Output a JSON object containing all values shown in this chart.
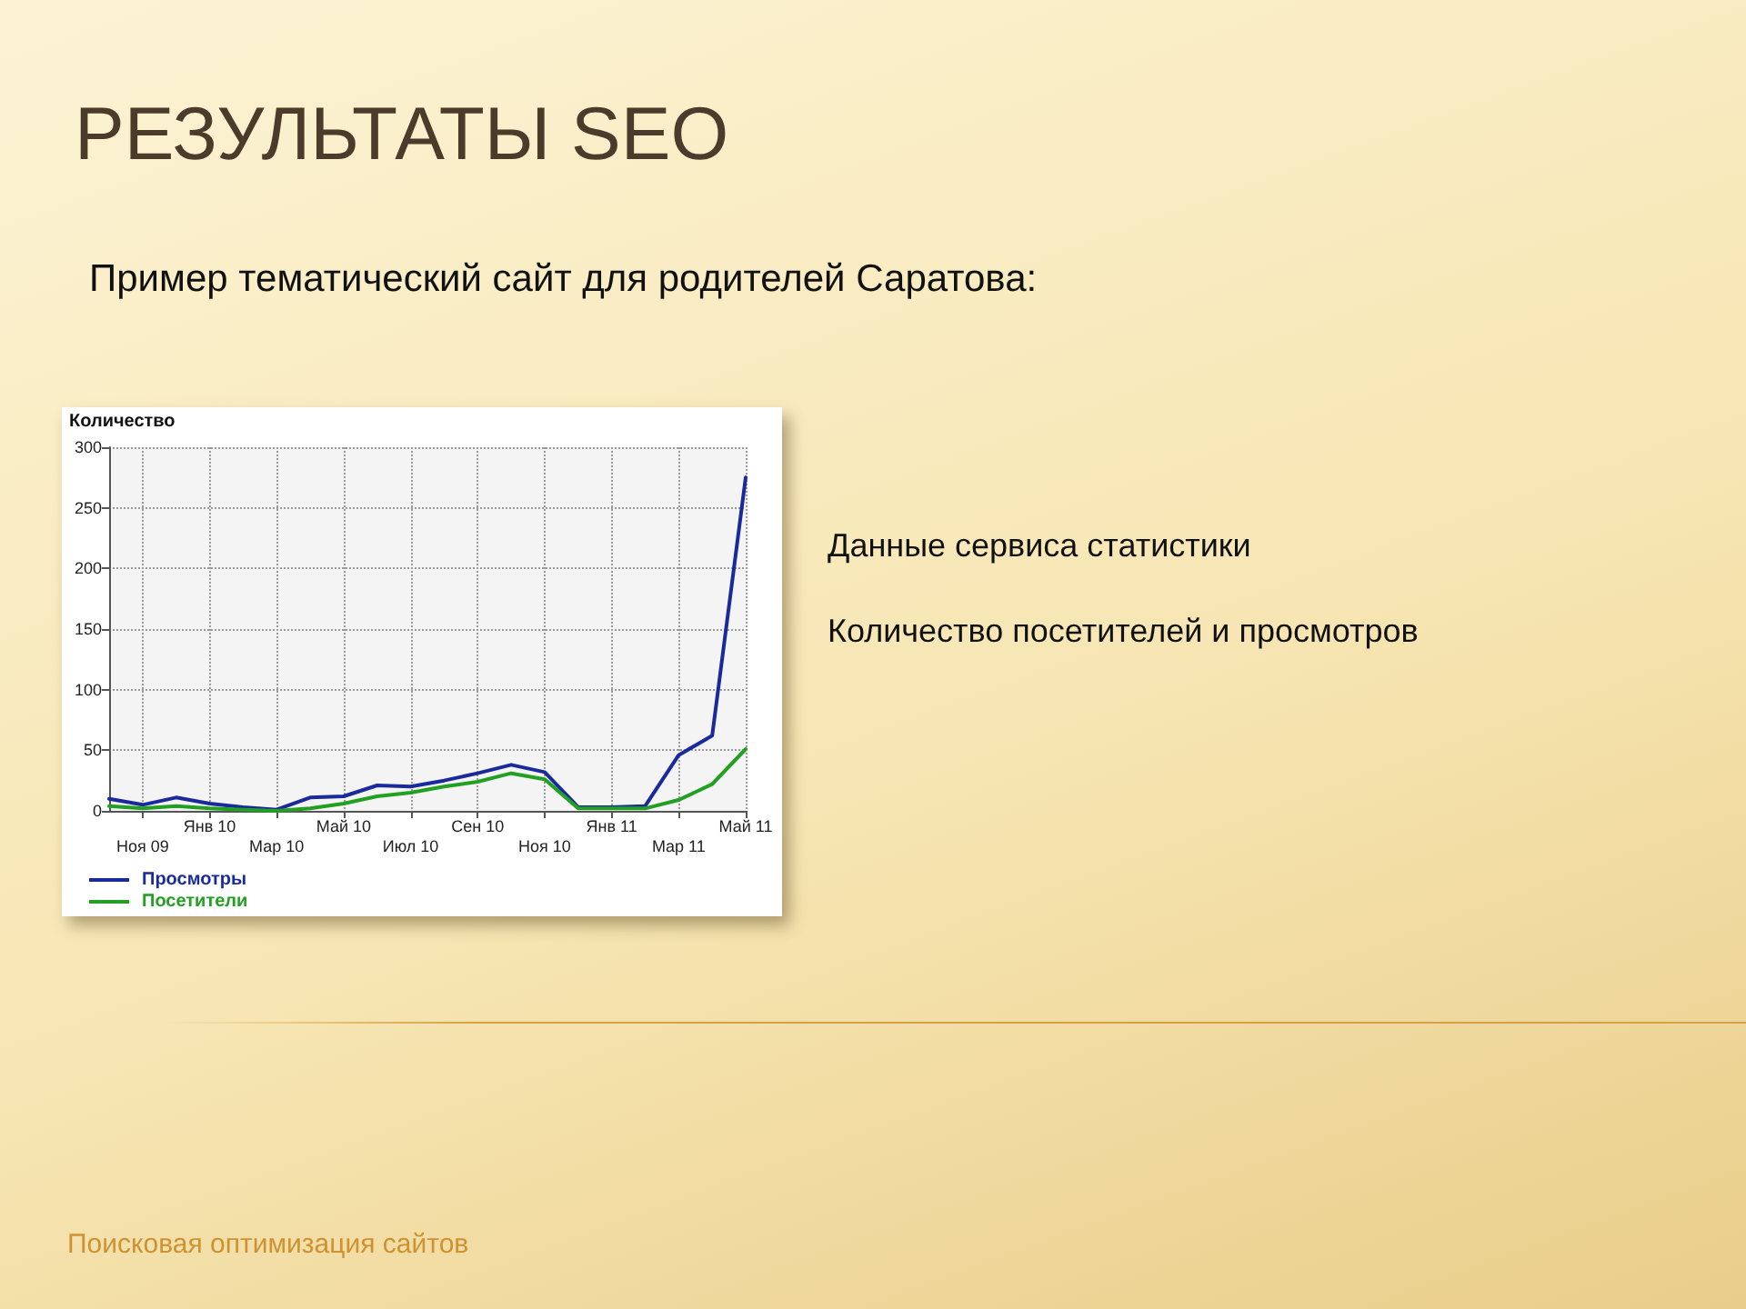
{
  "chart_data": {
    "type": "line",
    "title": "РЕЗУЛЬТАТЫ SEO",
    "subtitle": "Пример тематический сайт для родителей Саратова:",
    "ylabel": "Количество",
    "annotations": [
      "Данные сервиса статистики",
      "Количество посетителей и просмотров",
      "Поисковая оптимизация сайтов"
    ],
    "categories": [
      null,
      "Ноя 09",
      null,
      "Янв 10",
      null,
      "Мар 10",
      null,
      "Май 10",
      null,
      "Июл 10",
      null,
      "Сен 10",
      null,
      "Ноя 10",
      null,
      "Янв 11",
      null,
      "Мар 11",
      null,
      "Май 11"
    ],
    "series": [
      {
        "name": "Просмотры",
        "color": "#1a2a9c",
        "values": [
          10,
          5,
          11,
          6,
          3,
          1,
          11,
          12,
          21,
          20,
          25,
          31,
          38,
          32,
          3,
          3,
          4,
          46,
          62,
          275
        ]
      },
      {
        "name": "Посетители",
        "color": "#22a022",
        "values": [
          4,
          2,
          4,
          2,
          1,
          0,
          2,
          6,
          12,
          15,
          20,
          24,
          31,
          26,
          2,
          2,
          2,
          9,
          22,
          51
        ]
      }
    ],
    "ylim": [
      0,
      300
    ],
    "yticks": [
      0,
      50,
      100,
      150,
      200,
      250,
      300
    ],
    "grid": true,
    "legend": "bottom left",
    "marker": "none"
  }
}
